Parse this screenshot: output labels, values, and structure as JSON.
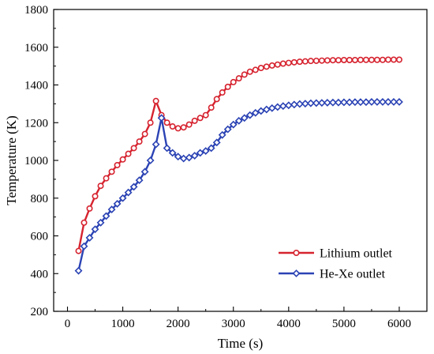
{
  "chart_data": {
    "type": "line",
    "xlabel": "Time (s)",
    "ylabel": "Temperature (K)",
    "xlim": [
      -250,
      6500
    ],
    "ylim": [
      200,
      1800
    ],
    "xticks": [
      0,
      1000,
      2000,
      3000,
      4000,
      5000,
      6000
    ],
    "yticks": [
      200,
      400,
      600,
      800,
      1000,
      1200,
      1400,
      1600,
      1800
    ],
    "legend": "bottom-right",
    "series": [
      {
        "name": "Lithium outlet",
        "color": "#d6232f",
        "marker": "circle",
        "x": [
          200,
          300,
          400,
          500,
          600,
          700,
          800,
          900,
          1000,
          1100,
          1200,
          1300,
          1400,
          1500,
          1600,
          1700,
          1800,
          1900,
          2000,
          2100,
          2200,
          2300,
          2400,
          2500,
          2600,
          2700,
          2800,
          2900,
          3000,
          3100,
          3200,
          3300,
          3400,
          3500,
          3600,
          3700,
          3800,
          3900,
          4000,
          4100,
          4200,
          4300,
          4400,
          4500,
          4600,
          4700,
          4800,
          4900,
          5000,
          5100,
          5200,
          5300,
          5400,
          5500,
          5600,
          5700,
          5800,
          5900,
          6000
        ],
        "values": [
          520,
          670,
          745,
          810,
          865,
          905,
          940,
          975,
          1005,
          1035,
          1065,
          1100,
          1140,
          1200,
          1315,
          1240,
          1200,
          1180,
          1170,
          1175,
          1190,
          1210,
          1225,
          1240,
          1280,
          1325,
          1360,
          1390,
          1415,
          1435,
          1455,
          1470,
          1480,
          1490,
          1497,
          1503,
          1508,
          1513,
          1517,
          1520,
          1523,
          1525,
          1527,
          1528,
          1529,
          1530,
          1531,
          1531,
          1532,
          1532,
          1532,
          1533,
          1533,
          1533,
          1533,
          1533,
          1534,
          1534,
          1534
        ]
      },
      {
        "name": "He-Xe outlet",
        "color": "#2b43b4",
        "marker": "diamond",
        "x": [
          200,
          300,
          400,
          500,
          600,
          700,
          800,
          900,
          1000,
          1100,
          1200,
          1300,
          1400,
          1500,
          1600,
          1700,
          1800,
          1900,
          2000,
          2100,
          2200,
          2300,
          2400,
          2500,
          2600,
          2700,
          2800,
          2900,
          3000,
          3100,
          3200,
          3300,
          3400,
          3500,
          3600,
          3700,
          3800,
          3900,
          4000,
          4100,
          4200,
          4300,
          4400,
          4500,
          4600,
          4700,
          4800,
          4900,
          5000,
          5100,
          5200,
          5300,
          5400,
          5500,
          5600,
          5700,
          5800,
          5900,
          6000
        ],
        "values": [
          415,
          545,
          590,
          635,
          670,
          705,
          740,
          770,
          800,
          830,
          860,
          895,
          940,
          1000,
          1085,
          1225,
          1065,
          1040,
          1020,
          1010,
          1015,
          1025,
          1040,
          1050,
          1065,
          1095,
          1135,
          1165,
          1190,
          1210,
          1225,
          1240,
          1252,
          1262,
          1270,
          1277,
          1283,
          1288,
          1292,
          1296,
          1299,
          1301,
          1303,
          1304,
          1305,
          1306,
          1307,
          1307,
          1308,
          1308,
          1309,
          1309,
          1309,
          1310,
          1310,
          1310,
          1310,
          1310,
          1310
        ]
      }
    ]
  }
}
